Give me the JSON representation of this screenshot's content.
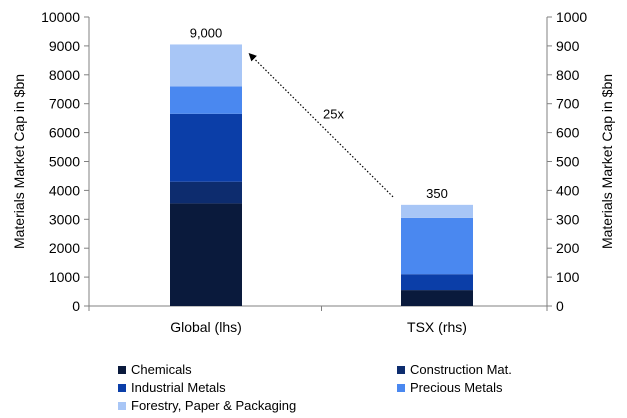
{
  "chart_data": {
    "type": "bar",
    "stacked": true,
    "categories": [
      "Global (lhs)",
      "TSX (rhs)"
    ],
    "ylabel": "Materials Market Cap in $bn",
    "ylim_left": [
      0,
      10000
    ],
    "ylim_right": [
      0,
      1000
    ],
    "left_ticks": [
      "0",
      "1000",
      "2000",
      "3000",
      "4000",
      "5000",
      "6000",
      "7000",
      "8000",
      "9000",
      "10000"
    ],
    "right_ticks": [
      "0",
      "100",
      "200",
      "300",
      "400",
      "500",
      "600",
      "700",
      "800",
      "900",
      "1000"
    ],
    "series": [
      {
        "name": "Chemicals",
        "color": "#0a1a3c",
        "values": [
          3550,
          55
        ]
      },
      {
        "name": "Construction Mat.",
        "color": "#0d2c6e",
        "values": [
          750,
          0
        ]
      },
      {
        "name": "Industrial Metals",
        "color": "#0b3ea8",
        "values": [
          2350,
          55
        ]
      },
      {
        "name": "Precious Metals",
        "color": "#4a88f0",
        "values": [
          950,
          195
        ]
      },
      {
        "name": "Forestry, Paper & Packaging",
        "color": "#a8c6f6",
        "values": [
          1450,
          45
        ]
      }
    ],
    "totals": [
      "9,000",
      "350"
    ],
    "annotation": "25x",
    "grid": false,
    "legend_position": "bottom"
  }
}
